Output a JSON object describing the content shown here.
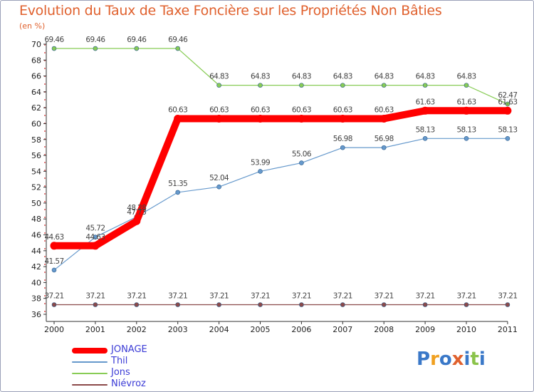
{
  "chart_data": {
    "type": "line",
    "title": "Evolution du Taux de Taxe Foncière sur les Propriétés Non Bâties",
    "ylabel": "(en %)",
    "xlabel": "",
    "ylim": [
      36,
      70
    ],
    "yticks": [
      36,
      38,
      40,
      42,
      44,
      46,
      48,
      50,
      52,
      54,
      56,
      58,
      60,
      62,
      64,
      66,
      68,
      70
    ],
    "categories": [
      "2000",
      "2001",
      "2002",
      "2003",
      "2004",
      "2005",
      "2006",
      "2007",
      "2008",
      "2009",
      "2010",
      "2011"
    ],
    "series": [
      {
        "name": "JONAGE",
        "color": "#ff0000",
        "values": [
          44.63,
          44.63,
          47.73,
          60.63,
          60.63,
          60.63,
          60.63,
          60.63,
          60.63,
          61.63,
          61.63,
          61.63
        ],
        "labels": [
          "44.63",
          "44.63",
          "47.73",
          "60.63",
          "60.63",
          "60.63",
          "60.63",
          "60.63",
          "60.63",
          "61.63",
          "61.63",
          "61.63"
        ]
      },
      {
        "name": "Thil",
        "color": "#6699cc",
        "values": [
          41.57,
          45.72,
          48.28,
          51.35,
          52.04,
          53.99,
          55.06,
          56.98,
          56.98,
          58.13,
          58.13,
          58.13
        ],
        "labels": [
          "41.57",
          "45.72",
          "48.28",
          "51.35",
          "52.04",
          "53.99",
          "55.06",
          "56.98",
          "56.98",
          "58.13",
          "58.13",
          "58.13"
        ]
      },
      {
        "name": "Jons",
        "color": "#88cc55",
        "values": [
          69.46,
          69.46,
          69.46,
          69.46,
          64.83,
          64.83,
          64.83,
          64.83,
          64.83,
          64.83,
          64.83,
          62.47
        ],
        "labels": [
          "69.46",
          "69.46",
          "69.46",
          "69.46",
          "64.83",
          "64.83",
          "64.83",
          "64.83",
          "64.83",
          "64.83",
          "64.83",
          "62.47"
        ]
      },
      {
        "name": "Niévroz",
        "color": "#8b4a4a",
        "values": [
          37.21,
          37.21,
          37.21,
          37.21,
          37.21,
          37.21,
          37.21,
          37.21,
          37.21,
          37.21,
          37.21,
          37.21
        ],
        "labels": [
          "37.21",
          "37.21",
          "37.21",
          "37.21",
          "37.21",
          "37.21",
          "37.21",
          "37.21",
          "37.21",
          "37.21",
          "37.21",
          "37.21"
        ]
      }
    ],
    "grid": false,
    "legend": "bottom-left"
  },
  "logo": {
    "text": "Proxiti",
    "letters": [
      "P",
      "r",
      "o",
      "x",
      "i",
      "t",
      "i"
    ],
    "colors": [
      "#3a78c8",
      "#f0a020",
      "#3a78c8",
      "#e0612e",
      "#3a78c8",
      "#8bc34a",
      "#3a78c8"
    ]
  }
}
